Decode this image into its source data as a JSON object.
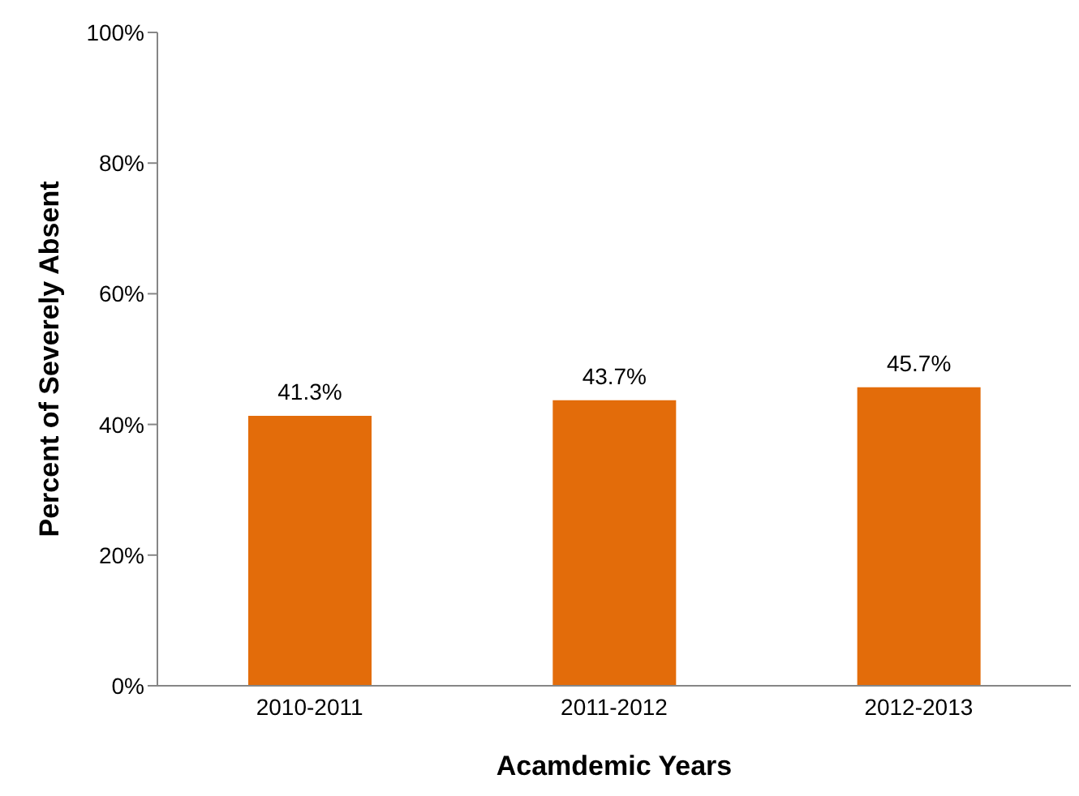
{
  "chart_data": {
    "type": "bar",
    "xlabel": "Acamdemic Years",
    "ylabel": "Percent of Severely Absent",
    "categories": [
      "2010-2011",
      "2011-2012",
      "2012-2013"
    ],
    "values": [
      41.3,
      43.7,
      45.7
    ],
    "value_labels": [
      "41.3%",
      "43.7%",
      "45.7%"
    ],
    "color": "#e36c0a",
    "ylim": [
      0,
      100
    ],
    "yticks": [
      {
        "value": 0,
        "label": "0%"
      },
      {
        "value": 20,
        "label": "20%"
      },
      {
        "value": 40,
        "label": "40%"
      },
      {
        "value": 60,
        "label": "60%"
      },
      {
        "value": 80,
        "label": "80%"
      },
      {
        "value": 100,
        "label": "100%"
      }
    ],
    "grid": false,
    "legend": false
  }
}
